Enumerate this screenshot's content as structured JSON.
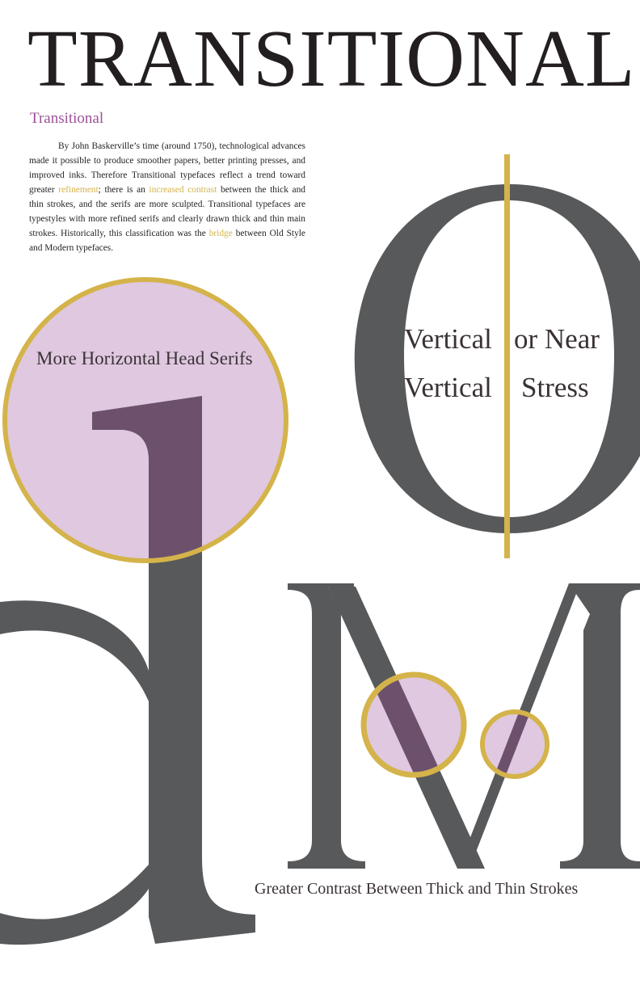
{
  "title": "TRANSITIONAL",
  "subtitle": "Transitional",
  "body": {
    "p1": "By John Baskerville’s time (around 1750), technological advances made it possible to produce smoother papers, better printing presses, and improved inks. Therefore Transitional typefaces reflect a trend toward greater ",
    "h1": "refinement",
    "p2": "; there is an ",
    "h2": "increased contrast",
    "p3": " between the thick and thin strokes, and the serifs are more sculpted. Transitional typefaces are typestyles with more refined serifs and clearly drawn thick and thin main strokes. Historically, this classification was the ",
    "h3": "bridge",
    "p4": " between Old Style and Modern typefaces."
  },
  "labels": {
    "head_serifs": "More Horizontal Head Serifs",
    "stress_line1_left": "Vertical",
    "stress_line1_right": "or Near",
    "stress_line2_left": "Vertical",
    "stress_line2_right": "Stress",
    "contrast": "Greater Contrast Between Thick and Thin Strokes"
  },
  "glyphs": [
    "o",
    "d",
    "M"
  ],
  "colors": {
    "glyph": "#58595b",
    "gold": "#d4b34a",
    "pink": "#dfc8e0",
    "overlap": "#6d516c",
    "accent_purple": "#9b4f96",
    "text": "#231f20"
  }
}
